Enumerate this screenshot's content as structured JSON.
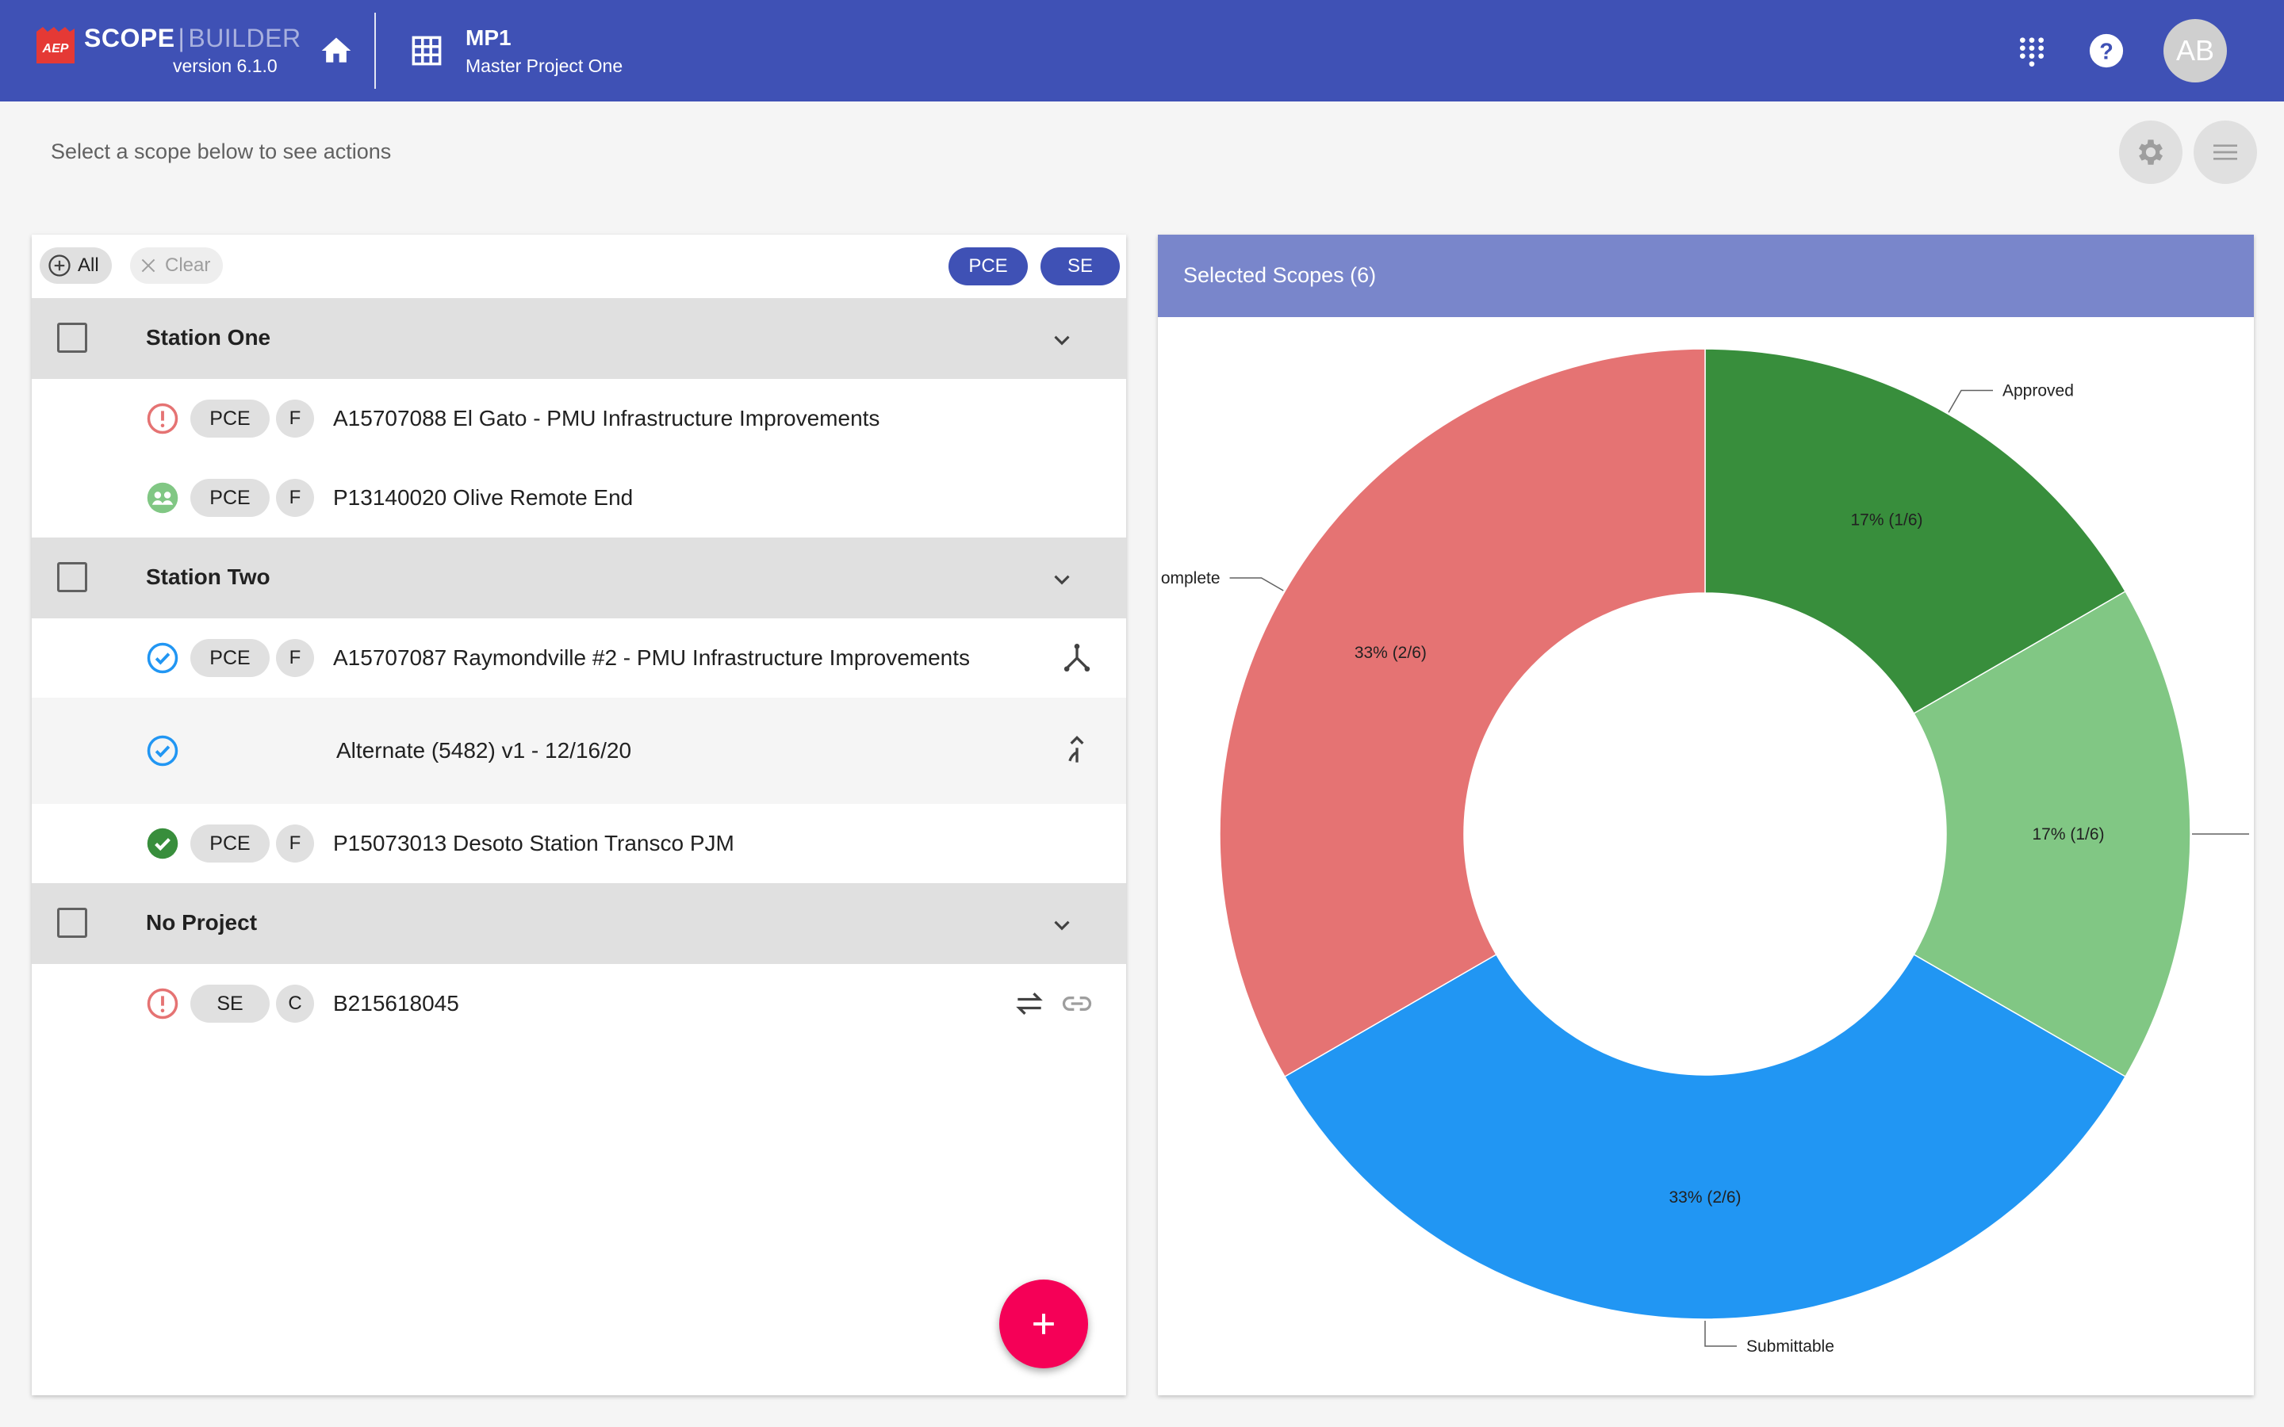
{
  "app": {
    "brand_name": "SCOPE",
    "brand_separator": "|",
    "brand_suffix": "BUILDER",
    "logo_text": "AEP",
    "version": "version 6.1.0",
    "project_code": "MP1",
    "project_name": "Master Project One",
    "avatar_initials": "AB",
    "icons": {
      "home": "home-icon",
      "grid": "grid-icon",
      "apps": "apps-icon",
      "help": "help-icon"
    }
  },
  "subheader": {
    "hint": "Select a scope below to see actions",
    "icons": {
      "settings": "gear-icon",
      "menu": "menu-icon"
    }
  },
  "filters": {
    "all_label": "All",
    "clear_label": "Clear",
    "type_chips": [
      "PCE",
      "SE"
    ],
    "accent": "#3f51b5"
  },
  "groups": [
    {
      "title": "Station One",
      "rows": [
        {
          "status": "error",
          "type": "PCE",
          "letter": "F",
          "title": "A15707088 El Gato - PMU Infrastructure Improvements"
        },
        {
          "status": "group",
          "type": "PCE",
          "letter": "F",
          "title": "P13140020 Olive Remote End"
        }
      ]
    },
    {
      "title": "Station Two",
      "rows": [
        {
          "status": "check-outline",
          "type": "PCE",
          "letter": "F",
          "title": "A15707087 Raymondville #2 - PMU Infrastructure Improvements",
          "action_icon": "split-icon"
        },
        {
          "status": "check-outline",
          "title": "Alternate (5482) v1 - 12/16/20",
          "action_icon": "merge-icon"
        },
        {
          "status": "check-filled",
          "type": "PCE",
          "letter": "F",
          "title": "P15073013 Desoto Station Transco PJM"
        }
      ]
    },
    {
      "title": "No Project",
      "rows": [
        {
          "status": "error",
          "type": "SE",
          "letter": "C",
          "title": "B215618045",
          "action_icons": [
            "swap-icon",
            "link-icon"
          ]
        }
      ]
    }
  ],
  "fab": {
    "icon": "plus-icon"
  },
  "chart_panel": {
    "title": "Selected Scopes (6)"
  },
  "chart_data": {
    "type": "pie",
    "donut": true,
    "total": 6,
    "slices": [
      {
        "label": "Approved",
        "count": 1,
        "percent": 17,
        "value_label": "17% (1/6)",
        "color": "#388e3c"
      },
      {
        "label": "",
        "count": 1,
        "percent": 17,
        "value_label": "17% (1/6)",
        "color": "#81c784"
      },
      {
        "label": "Submittable",
        "count": 2,
        "percent": 33,
        "value_label": "33% (2/6)",
        "color": "#2196f3"
      },
      {
        "label": "omplete",
        "count": 2,
        "percent": 33,
        "value_label": "33% (2/6)",
        "color": "#e57373"
      }
    ]
  },
  "status_colors": {
    "error": "#e57373",
    "group": "#81c784",
    "check-outline": "#2196f3",
    "check-filled": "#388e3c"
  }
}
